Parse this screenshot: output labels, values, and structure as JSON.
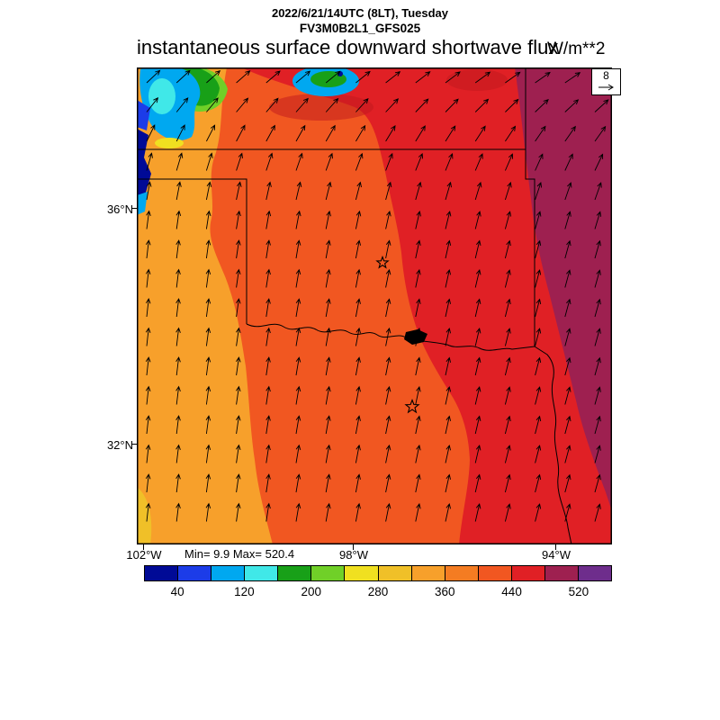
{
  "header": {
    "datetime_line": "2022/6/21/14UTC (8LT), Tuesday",
    "model_line": "FV3M0B2L1_GFS025",
    "main_title": "instantaneous surface downward shortwave flux",
    "units": "W/m**2"
  },
  "map": {
    "lat_labels": [
      "36°N",
      "32°N"
    ],
    "lon_labels": [
      "102°W",
      "98°W",
      "94°W"
    ],
    "min_max": "Min= 9.9 Max= 520.4",
    "wind_ref_value": "8",
    "region_colors": {
      "orange": "#F7A02B",
      "red_orange": "#F15721",
      "red": "#E02025",
      "dark_red": "#C0181D",
      "maroon": "#9E2050",
      "purple": "#6E2D8C",
      "gold": "#F0C028",
      "navy": "#000A96",
      "blue": "#1C3CE8",
      "cyan": "#00A8F0",
      "light_cyan": "#40E8E8",
      "green": "#18A018",
      "light_green": "#70D028",
      "yellow": "#F0E020",
      "water": "#000000",
      "border": "#000000"
    }
  },
  "colorbar": {
    "colors": [
      "#000A96",
      "#1C3CE8",
      "#00A8F0",
      "#40E8E8",
      "#18A018",
      "#70D028",
      "#F0E020",
      "#F0C028",
      "#F7A02B",
      "#F47C22",
      "#F15721",
      "#E02025",
      "#9E2050",
      "#6E2D8C"
    ],
    "tick_labels": [
      "40",
      "120",
      "200",
      "280",
      "360",
      "440",
      "520"
    ]
  },
  "chart_data": {
    "type": "heatmap",
    "title": "instantaneous surface downward shortwave flux",
    "units": "W/m**2",
    "model": "FV3M0B2L1_GFS025",
    "valid_time": "2022/6/21/14UTC (8LT), Tuesday",
    "min": 9.9,
    "max": 520.4,
    "colorbar_interval": 40,
    "colorbar_range": [
      0,
      560
    ],
    "colorbar_ticks": [
      40,
      120,
      200,
      280,
      360,
      440,
      520
    ],
    "x_ticks": [
      "102°W",
      "98°W",
      "94°W"
    ],
    "y_ticks": [
      "36°N",
      "32°N"
    ],
    "wind_reference_m_s": 8,
    "regions": [
      {
        "area": "west (Texas panhandle and west Texas)",
        "value_range": [
          320,
          360
        ],
        "color": "#F7A02B"
      },
      {
        "area": "central (central Texas and Oklahoma)",
        "value_range": [
          400,
          440
        ],
        "color": "#F15721"
      },
      {
        "area": "east (east Texas and east Oklahoma)",
        "value_range": [
          440,
          480
        ],
        "color": "#E02025"
      },
      {
        "area": "far east (Arkansas / Missouri edge)",
        "value_range": [
          480,
          520
        ],
        "color": "#9E2050"
      },
      {
        "area": "northwest corner cloud patches",
        "value_range": [
          10,
          240
        ],
        "color": "mixed navy/blue/cyan/green/yellow"
      }
    ],
    "wind_field": "arrows point generally north, tilting strongly northeast near the top of the domain",
    "landmarks": [
      "Red River",
      "Lake Texoma",
      "two open-star city markers"
    ]
  }
}
